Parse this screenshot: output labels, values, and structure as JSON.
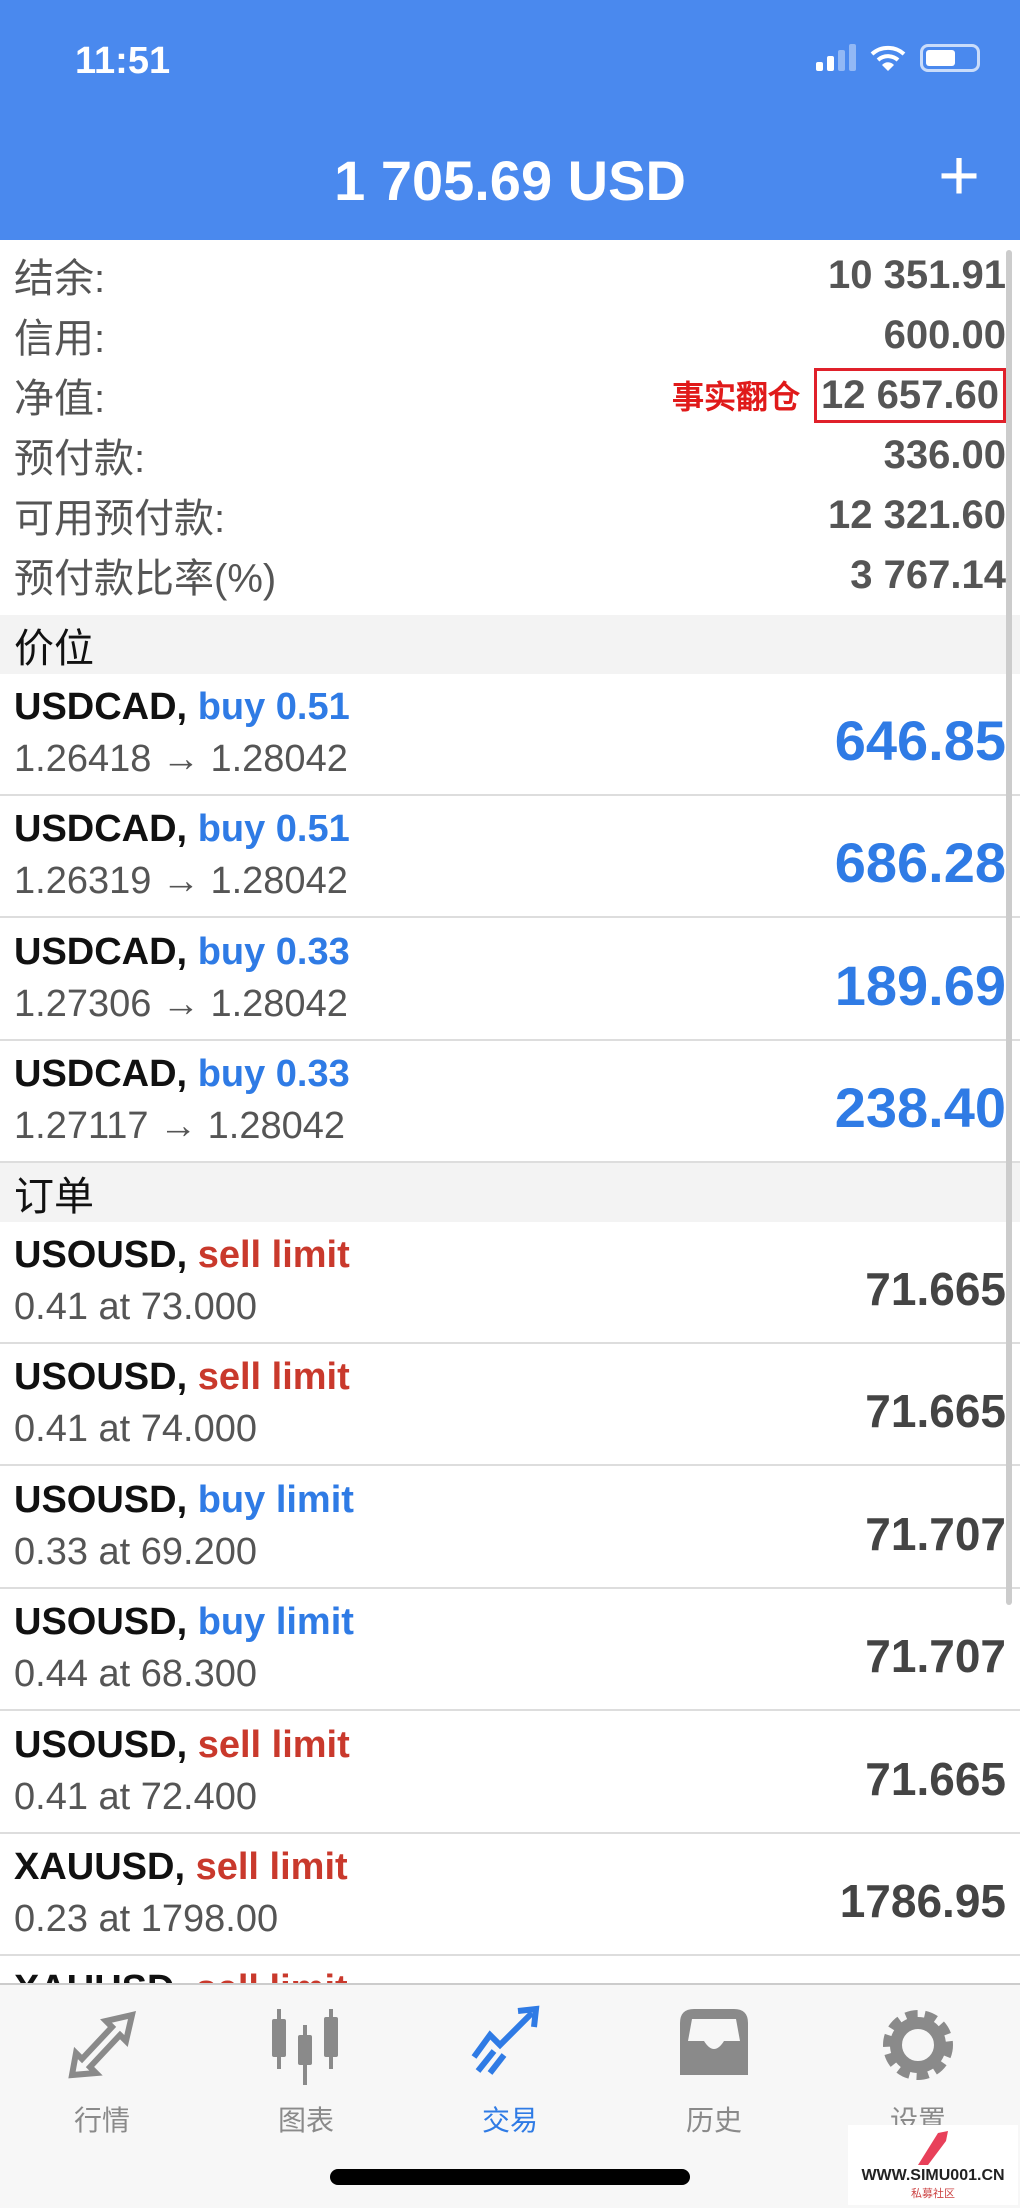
{
  "status_bar": {
    "time": "11:51"
  },
  "header": {
    "title": "1 705.69 USD",
    "add_icon": "plus-icon"
  },
  "summary": [
    {
      "label": "结余:",
      "value": "10 351.91"
    },
    {
      "label": "信用:",
      "value": "600.00"
    },
    {
      "label": "净值:",
      "value": "12 657.60",
      "annotation": "事实翻仓"
    },
    {
      "label": "预付款:",
      "value": "336.00"
    },
    {
      "label": "可用预付款:",
      "value": "12 321.60"
    },
    {
      "label": "预付款比率(%)",
      "value": "3 767.14"
    }
  ],
  "positions": {
    "title": "价位",
    "items": [
      {
        "symbol": "USDCAD,",
        "type": "buy 0.51",
        "prices": "1.26418 → 1.28042",
        "profit": "646.85"
      },
      {
        "symbol": "USDCAD,",
        "type": "buy 0.51",
        "prices": "1.26319 → 1.28042",
        "profit": "686.28"
      },
      {
        "symbol": "USDCAD,",
        "type": "buy 0.33",
        "prices": "1.27306 → 1.28042",
        "profit": "189.69"
      },
      {
        "symbol": "USDCAD,",
        "type": "buy 0.33",
        "prices": "1.27117 → 1.28042",
        "profit": "238.40"
      }
    ]
  },
  "orders": {
    "title": "订单",
    "items": [
      {
        "symbol": "USOUSD,",
        "type": "sell limit",
        "detail": "0.41 at 73.000",
        "price": "71.665"
      },
      {
        "symbol": "USOUSD,",
        "type": "sell limit",
        "detail": "0.41 at 74.000",
        "price": "71.665"
      },
      {
        "symbol": "USOUSD,",
        "type": "buy limit",
        "detail": "0.33 at 69.200",
        "price": "71.707"
      },
      {
        "symbol": "USOUSD,",
        "type": "buy limit",
        "detail": "0.44 at 68.300",
        "price": "71.707"
      },
      {
        "symbol": "USOUSD,",
        "type": "sell limit",
        "detail": "0.41 at 72.400",
        "price": "71.665"
      },
      {
        "symbol": "XAUUSD,",
        "type": "sell limit",
        "detail": "0.23 at 1798.00",
        "price": "1786.95"
      },
      {
        "symbol": "XAUUSD,",
        "type": "sell limit",
        "detail": "",
        "price": ""
      }
    ]
  },
  "tabs": [
    {
      "label": "行情",
      "icon": "quotes-icon"
    },
    {
      "label": "图表",
      "icon": "chart-icon"
    },
    {
      "label": "交易",
      "icon": "trade-icon",
      "active": true
    },
    {
      "label": "历史",
      "icon": "history-icon"
    },
    {
      "label": "设置",
      "icon": "settings-icon"
    }
  ],
  "watermark": {
    "site": "WWW.SIMU001.CN",
    "caption": "私募社区"
  },
  "colors": {
    "header": "#4a89ee",
    "buy": "#2f7be5",
    "sell": "#c9392c",
    "annotation": "#e01a1a"
  }
}
